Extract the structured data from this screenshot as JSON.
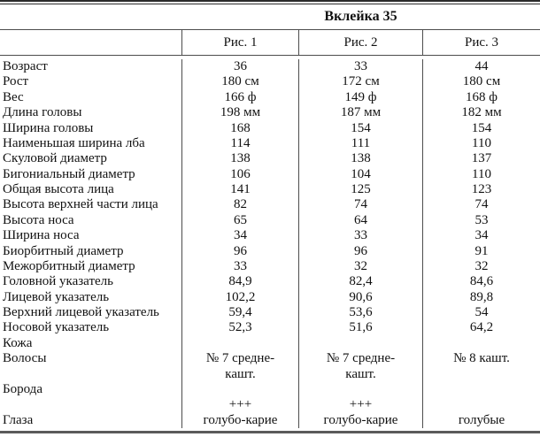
{
  "title": "Вклейка 35",
  "columns": [
    "Рис. 1",
    "Рис. 2",
    "Рис. 3"
  ],
  "rows": [
    {
      "label": "Возраст",
      "values": [
        "36",
        "33",
        "44"
      ]
    },
    {
      "label": "Рост",
      "values": [
        "180 см",
        "172 см",
        "180 см"
      ]
    },
    {
      "label": "Вес",
      "values": [
        "166 ф",
        "149 ф",
        "168 ф"
      ]
    },
    {
      "label": "Длина головы",
      "values": [
        "198 мм",
        "187 мм",
        "182 мм"
      ]
    },
    {
      "label": "Ширина головы",
      "values": [
        "168",
        "154",
        "154"
      ]
    },
    {
      "label": "Наименьшая ширина лба",
      "values": [
        "114",
        "111",
        "110"
      ]
    },
    {
      "label": "Скуловой диаметр",
      "values": [
        "138",
        "138",
        "137"
      ]
    },
    {
      "label": "Бигониальный диаметр",
      "values": [
        "106",
        "104",
        "110"
      ]
    },
    {
      "label": "Общая высота лица",
      "values": [
        "141",
        "125",
        "123"
      ]
    },
    {
      "label": "Высота верхней части лица",
      "values": [
        "82",
        "74",
        "74"
      ]
    },
    {
      "label": "Высота носа",
      "values": [
        "65",
        "64",
        "53"
      ]
    },
    {
      "label": "Ширина носа",
      "values": [
        "34",
        "33",
        "34"
      ]
    },
    {
      "label": "Биорбитный диаметр",
      "values": [
        "96",
        "96",
        "91"
      ]
    },
    {
      "label": "Межорбитный диаметр",
      "values": [
        "33",
        "32",
        "32"
      ]
    },
    {
      "label": "Головной указатель",
      "values": [
        "84,9",
        "82,4",
        "84,6"
      ]
    },
    {
      "label": "Лицевой указатель",
      "values": [
        "102,2",
        "90,6",
        "89,8"
      ]
    },
    {
      "label": "Верхний лицевой указатель",
      "values": [
        "59,4",
        "53,6",
        "54"
      ]
    },
    {
      "label": "Носовой указатель",
      "values": [
        "52,3",
        "51,6",
        "64,2"
      ]
    },
    {
      "label": "Кожа",
      "values": [
        "",
        "",
        ""
      ]
    },
    {
      "label": "Волосы",
      "values": [
        "№ 7 средне-\nкашт.",
        "№ 7 средне-\nкашт.",
        "№ 8 кашт."
      ]
    },
    {
      "label": "Борода",
      "values": [
        "",
        "",
        ""
      ]
    },
    {
      "label": "",
      "values": [
        "+++",
        "+++",
        ""
      ]
    },
    {
      "label": "Глаза",
      "values": [
        "голубо-карие",
        "голубо-карие",
        "голубые"
      ]
    }
  ]
}
